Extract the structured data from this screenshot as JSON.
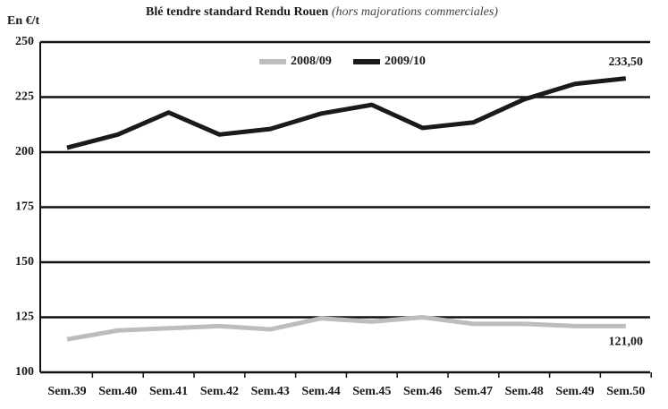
{
  "chart_data": {
    "type": "line",
    "title": "Blé tendre standard Rendu Rouen",
    "subtitle": "(hors majorations commerciales)",
    "y_label": "En €/t",
    "categories": [
      "Sem.39",
      "Sem.40",
      "Sem.41",
      "Sem.42",
      "Sem.43",
      "Sem.44",
      "Sem.45",
      "Sem.46",
      "Sem.47",
      "Sem.48",
      "Sem.49",
      "Sem.50"
    ],
    "series": [
      {
        "name": "2008/09",
        "color": "#bdbdbd",
        "values": [
          115,
          119,
          120,
          121,
          119.5,
          124.5,
          123,
          125,
          122,
          122,
          121,
          121
        ],
        "value_labels": [
          null,
          null,
          null,
          null,
          null,
          null,
          null,
          null,
          null,
          null,
          null,
          "121,00"
        ]
      },
      {
        "name": "2009/10",
        "color": "#1a1a1a",
        "values": [
          202,
          208,
          218,
          208,
          210.5,
          217.5,
          221.5,
          211,
          213.5,
          224,
          231,
          233.5
        ],
        "value_labels": [
          null,
          null,
          null,
          null,
          null,
          null,
          null,
          null,
          null,
          null,
          null,
          "233,50"
        ]
      }
    ],
    "ylim": [
      100,
      250
    ],
    "yticks": [
      100,
      125,
      150,
      175,
      200,
      225,
      250
    ],
    "grid": true
  }
}
